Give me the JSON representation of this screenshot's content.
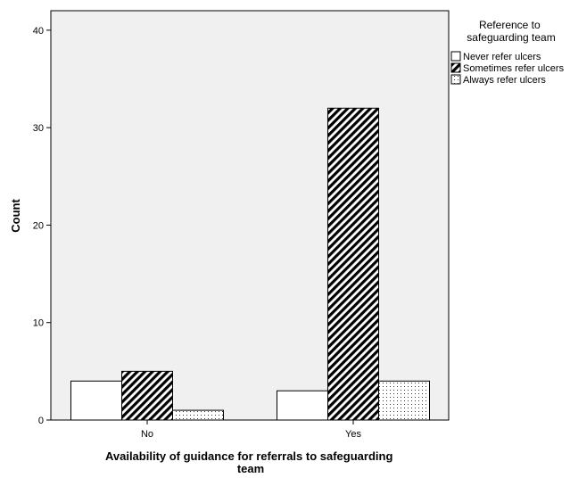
{
  "chart_data": {
    "type": "bar",
    "xlabel_lines": [
      "Availability of guidance for referrals to safeguarding",
      "team"
    ],
    "ylabel": "Count",
    "categories": [
      "No",
      "Yes"
    ],
    "ylim": [
      0,
      42
    ],
    "yticks": [
      0,
      10,
      20,
      30,
      40
    ],
    "grid": false,
    "legend_placement": "right",
    "legend_title_lines": [
      "Reference to",
      "safeguarding team"
    ],
    "series": [
      {
        "name": "Never refer ulcers",
        "values": [
          4,
          3
        ],
        "pattern": "plain"
      },
      {
        "name": "Sometimes refer ulcers",
        "values": [
          5,
          32
        ],
        "pattern": "diagonal-stripes"
      },
      {
        "name": "Always refer ulcers",
        "values": [
          1,
          4
        ],
        "pattern": "dots"
      }
    ],
    "colors": {
      "plot_background": "#f0f0f0",
      "bar_fill": "#ffffff",
      "stroke": "#000000"
    }
  }
}
